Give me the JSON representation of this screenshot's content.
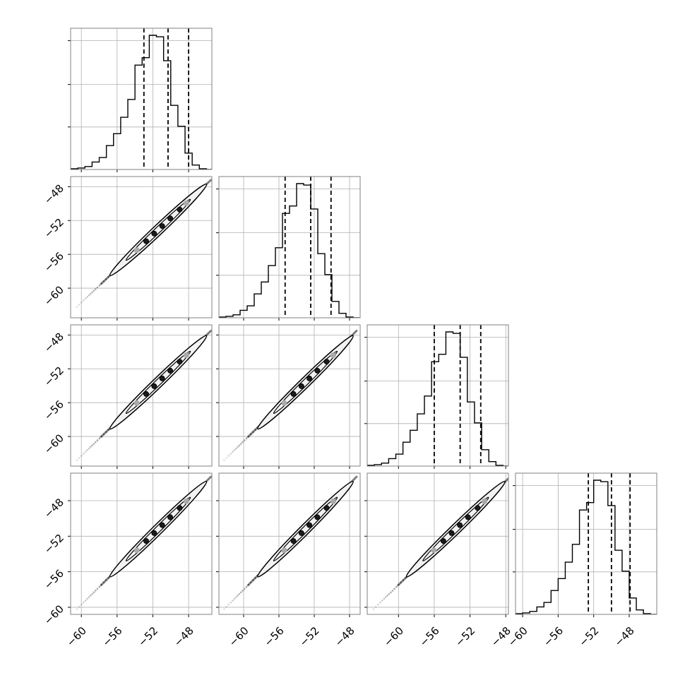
{
  "colors": {
    "ink": "#000000",
    "grid": "#b0b0b0",
    "frame": "#808080",
    "contour_fill": "#f2f2f2"
  },
  "chart_data": {
    "type": "corner",
    "title": "",
    "dimensions": 4,
    "grid": true,
    "x_ticks": {
      "col0": [
        "−60",
        "−56",
        "−52",
        "−48"
      ],
      "col1": [
        "−60",
        "−56",
        "−52",
        "−48"
      ],
      "col2": [
        "−60",
        "−56",
        "−52",
        "−48"
      ],
      "col3": [
        "−60",
        "−56",
        "−52",
        "−48"
      ]
    },
    "y_ticks": {
      "row1": [
        "−48",
        "−52",
        "−56",
        "−60"
      ],
      "row2": [
        "−48",
        "−52",
        "−56",
        "−60"
      ],
      "row3": [
        "−48",
        "−52",
        "−56",
        "−60"
      ]
    },
    "x_ranges": [
      [
        -61.2,
        -45.4
      ],
      [
        -62.8,
        -46.8
      ],
      [
        -63.5,
        -47.7
      ],
      [
        -60.8,
        -44.9
      ]
    ],
    "y_ranges": [
      null,
      [
        -63.5,
        -46.8
      ],
      [
        -63.5,
        -46.8
      ],
      [
        -60.8,
        -44.9
      ]
    ],
    "histograms": [
      {
        "dim": 0,
        "bin_edges": [
          -61.2,
          -60.4,
          -59.6,
          -58.8,
          -58.0,
          -57.2,
          -56.4,
          -55.6,
          -54.8,
          -54.0,
          -53.2,
          -52.4,
          -51.6,
          -50.8,
          -50.0,
          -49.2,
          -48.4,
          -47.6,
          -46.8,
          -46.0,
          -45.4
        ],
        "counts": [
          0.005,
          0.01,
          0.02,
          0.05,
          0.08,
          0.16,
          0.24,
          0.35,
          0.47,
          0.7,
          0.75,
          0.9,
          0.89,
          0.73,
          0.43,
          0.29,
          0.11,
          0.03,
          0.005,
          0.0
        ],
        "quantiles": [
          -53.0,
          -50.3,
          -48.0
        ]
      },
      {
        "dim": 1,
        "bin_edges": [
          -62.8,
          -62.0,
          -61.2,
          -60.4,
          -59.6,
          -58.8,
          -58.0,
          -57.2,
          -56.4,
          -55.6,
          -54.8,
          -54.0,
          -53.2,
          -52.4,
          -51.6,
          -50.8,
          -50.0,
          -49.2,
          -48.4,
          -47.6,
          -46.8
        ],
        "counts": [
          0.005,
          0.01,
          0.02,
          0.05,
          0.08,
          0.16,
          0.24,
          0.35,
          0.47,
          0.7,
          0.75,
          0.9,
          0.89,
          0.73,
          0.43,
          0.29,
          0.11,
          0.03,
          0.005,
          0.0
        ],
        "quantiles": [
          -55.3,
          -52.4,
          -50.1
        ]
      },
      {
        "dim": 2,
        "bin_edges": [
          -63.5,
          -62.7,
          -61.9,
          -61.1,
          -60.3,
          -59.5,
          -58.7,
          -57.9,
          -57.1,
          -56.3,
          -55.5,
          -54.7,
          -53.9,
          -53.1,
          -52.3,
          -51.5,
          -50.7,
          -49.9,
          -49.1,
          -48.3,
          -47.7
        ],
        "counts": [
          0.005,
          0.01,
          0.02,
          0.05,
          0.08,
          0.16,
          0.24,
          0.35,
          0.47,
          0.7,
          0.75,
          0.9,
          0.89,
          0.73,
          0.43,
          0.29,
          0.11,
          0.03,
          0.005,
          0.0
        ],
        "quantiles": [
          -56.0,
          -53.1,
          -50.8
        ]
      },
      {
        "dim": 3,
        "bin_edges": [
          -60.8,
          -60.0,
          -59.2,
          -58.4,
          -57.6,
          -56.8,
          -56.0,
          -55.2,
          -54.4,
          -53.6,
          -52.8,
          -52.0,
          -51.2,
          -50.4,
          -49.6,
          -48.8,
          -48.0,
          -47.2,
          -46.4,
          -45.6,
          -44.9
        ],
        "counts": [
          0.005,
          0.01,
          0.02,
          0.05,
          0.08,
          0.16,
          0.24,
          0.35,
          0.47,
          0.7,
          0.75,
          0.9,
          0.89,
          0.73,
          0.43,
          0.29,
          0.11,
          0.03,
          0.005,
          0.0
        ],
        "quantiles": [
          -52.6,
          -50.0,
          -47.9
        ]
      }
    ],
    "scatter_panels": [
      {
        "row": 1,
        "col": 0,
        "center": [
          -51.4,
          -53.1
        ],
        "tail": [
          -60.5,
          -62.2
        ],
        "head": [
          -45.5,
          -47.2
        ]
      },
      {
        "row": 2,
        "col": 0,
        "center": [
          -51.4,
          -53.6
        ],
        "tail": [
          -60.5,
          -62.8
        ],
        "head": [
          -45.5,
          -47.5
        ]
      },
      {
        "row": 2,
        "col": 1,
        "center": [
          -53.0,
          -53.6
        ],
        "tail": [
          -62.2,
          -62.8
        ],
        "head": [
          -47.2,
          -47.5
        ]
      },
      {
        "row": 3,
        "col": 0,
        "center": [
          -51.4,
          -51.2
        ],
        "tail": [
          -60.5,
          -60.2
        ],
        "head": [
          -45.5,
          -45.3
        ]
      },
      {
        "row": 3,
        "col": 1,
        "center": [
          -53.0,
          -51.2
        ],
        "tail": [
          -62.2,
          -60.2
        ],
        "head": [
          -47.2,
          -45.3
        ]
      },
      {
        "row": 3,
        "col": 2,
        "center": [
          -53.6,
          -51.2
        ],
        "tail": [
          -62.8,
          -60.2
        ],
        "head": [
          -47.5,
          -45.3
        ]
      }
    ]
  }
}
